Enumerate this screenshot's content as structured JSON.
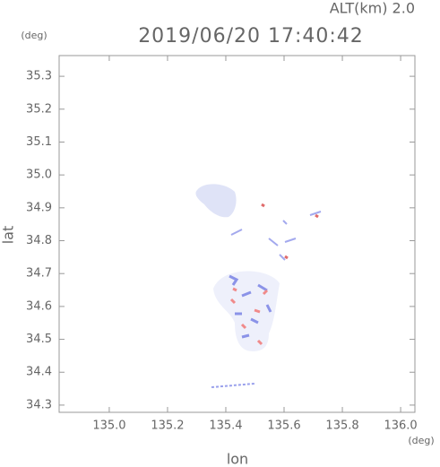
{
  "chart_data": {
    "type": "map",
    "title": "2019/06/20 17:40:42",
    "altitude": "ALT(km) 2.0",
    "x_label": "lon",
    "y_label": "lat",
    "x_unit": "(deg)",
    "y_unit": "(deg)",
    "xlim": [
      134.828,
      136.049
    ],
    "ylim": [
      34.278,
      35.363
    ],
    "xticks": [
      {
        "value": 135.0,
        "label": "135.0"
      },
      135.2,
      135.4,
      135.6,
      135.8,
      {
        "value": 136.0,
        "label": "136.0"
      }
    ],
    "yticks": [
      34.3,
      34.4,
      34.5,
      34.6,
      34.7,
      34.8,
      34.9,
      {
        "value": 35.0,
        "label": "35.0"
      },
      35.1,
      35.2,
      35.3
    ]
  }
}
